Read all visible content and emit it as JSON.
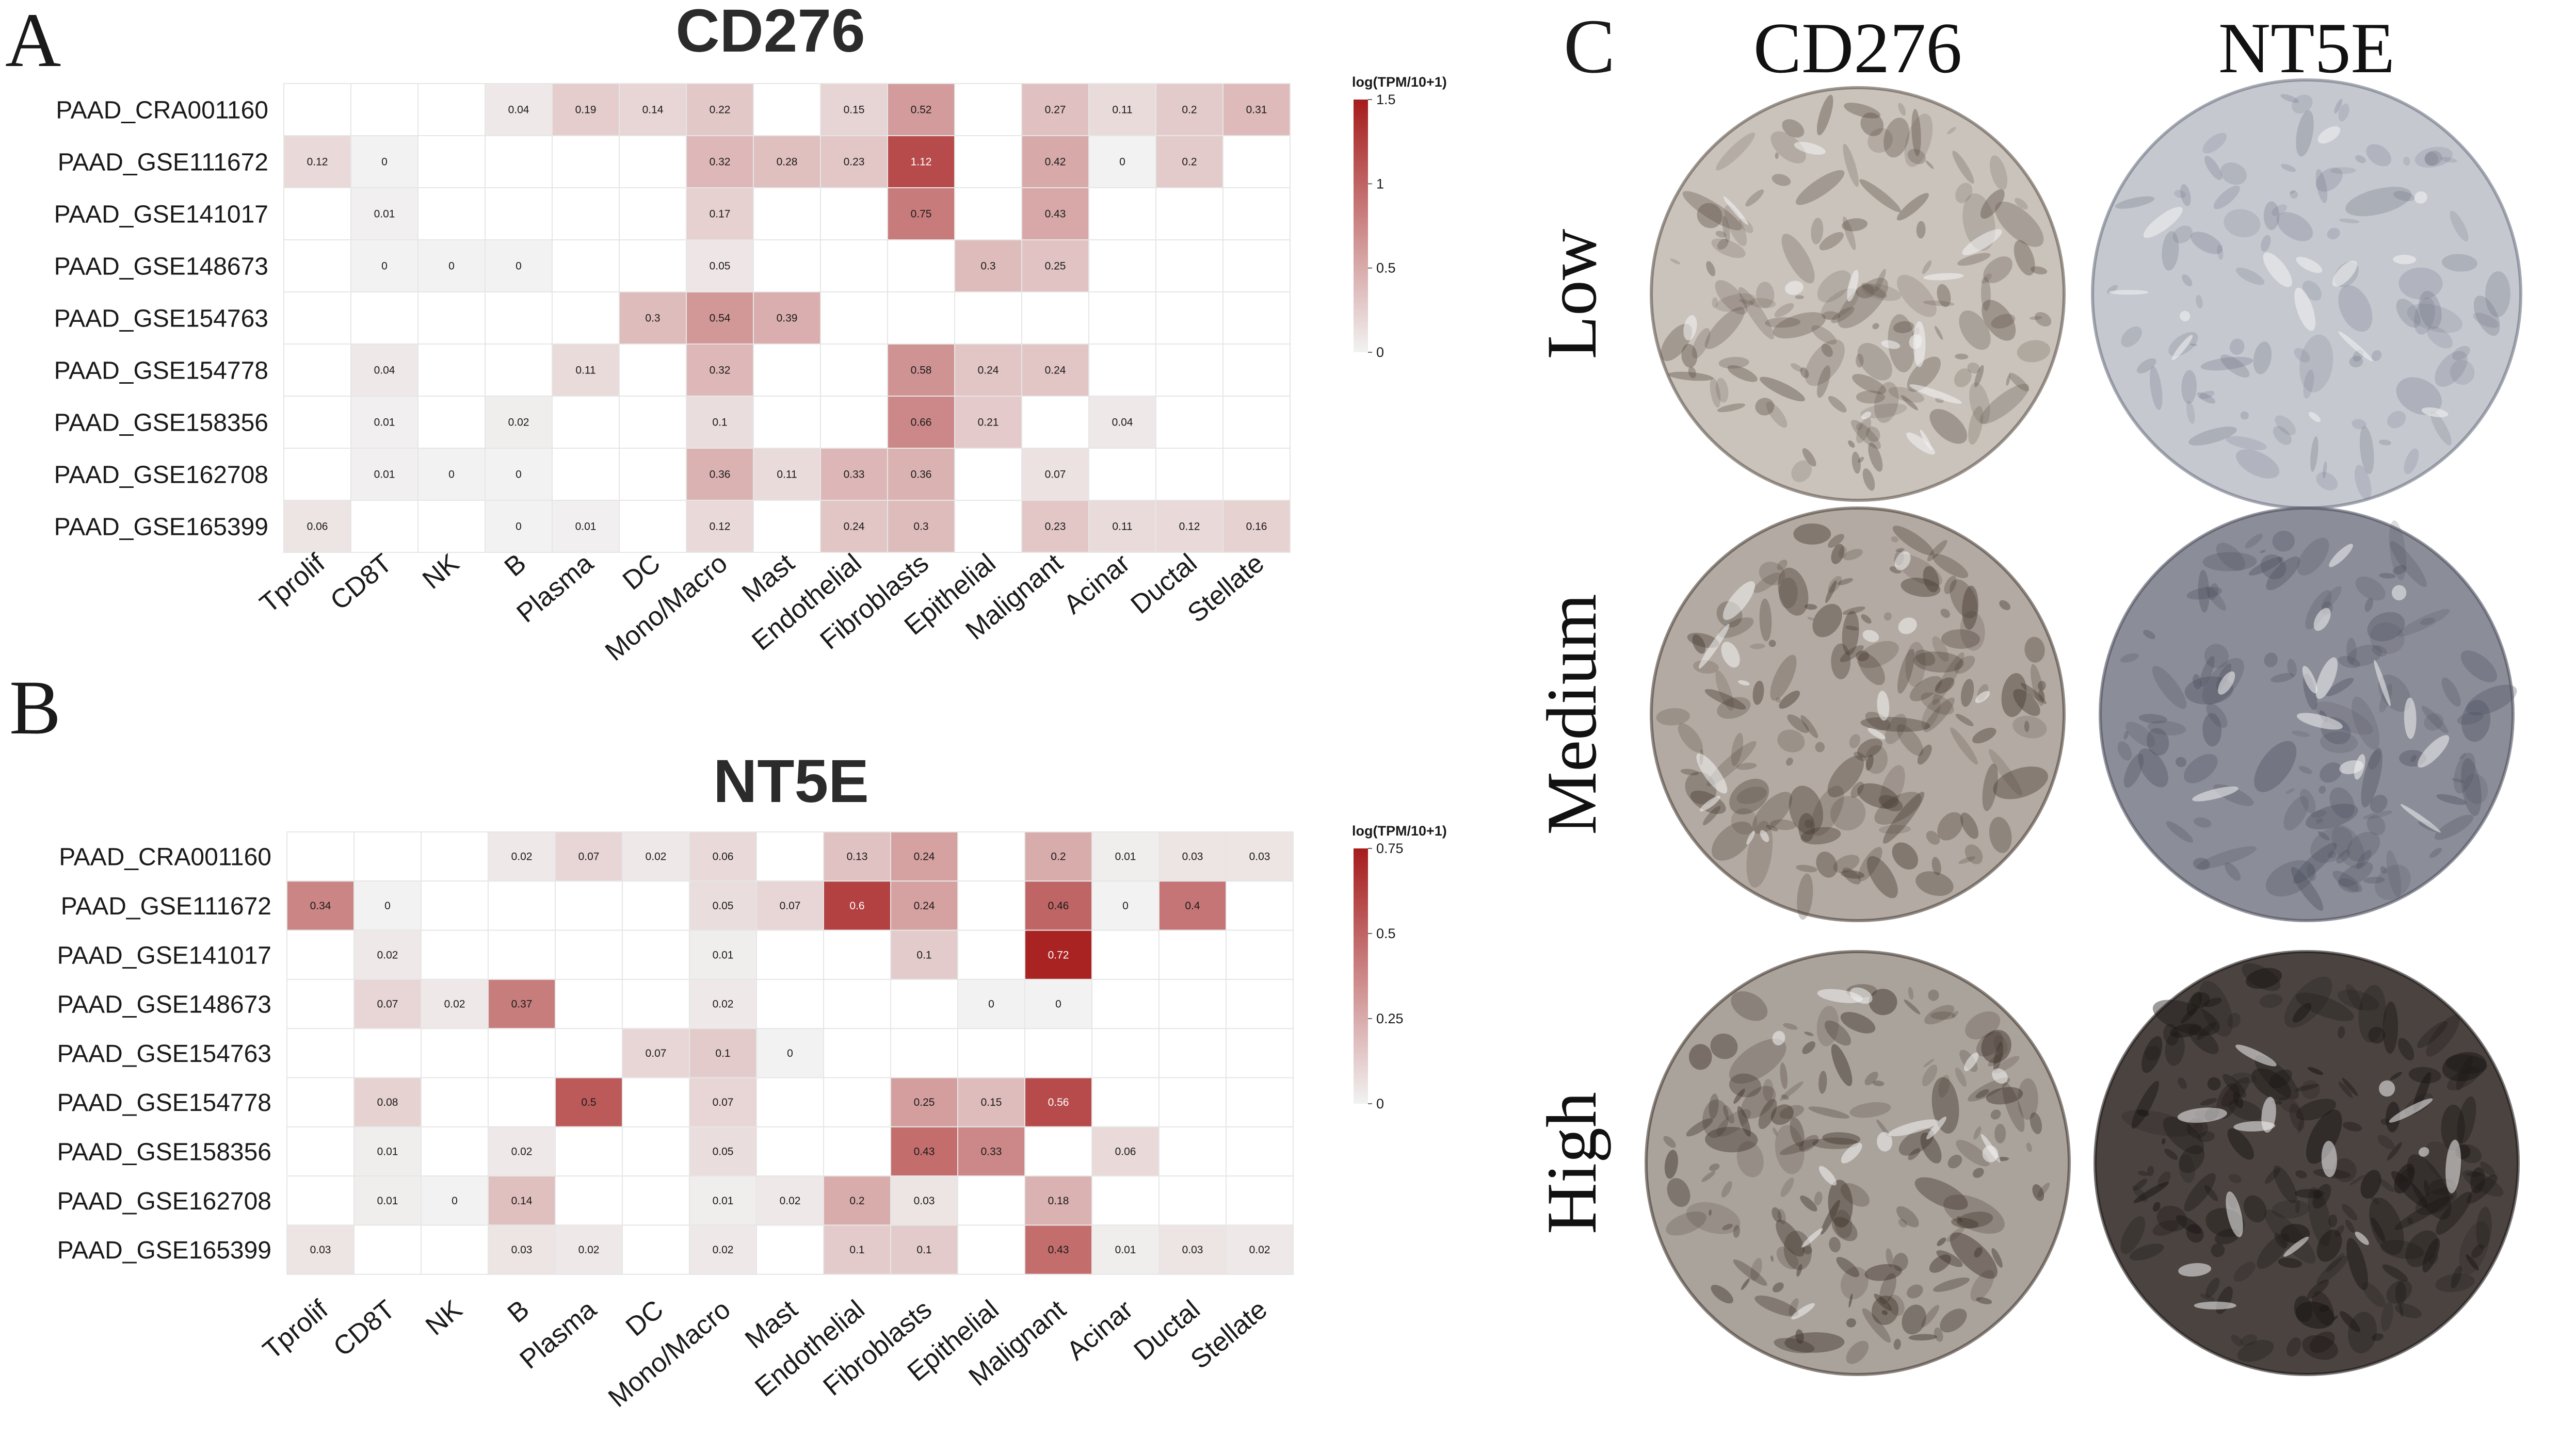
{
  "panels": {
    "a": "A",
    "b": "B",
    "c": "C"
  },
  "chart_data": [
    {
      "type": "heatmap",
      "title": "CD276",
      "legend_title": "log(TPM/10+1)",
      "legend_ticks": [
        "1.5",
        "1",
        "0.5",
        "0"
      ],
      "vmax": 1.5,
      "vmin": 0,
      "colors": {
        "low": "#f2f2f2",
        "high": "#a61c1c",
        "grid": "#e6e6e6",
        "text_dark": "#1a1a1a",
        "text_light": "#ffffff"
      },
      "rows": [
        "PAAD_CRA001160",
        "PAAD_GSE111672",
        "PAAD_GSE141017",
        "PAAD_GSE148673",
        "PAAD_GSE154763",
        "PAAD_GSE154778",
        "PAAD_GSE158356",
        "PAAD_GSE162708",
        "PAAD_GSE165399"
      ],
      "columns": [
        "Tprolif",
        "CD8T",
        "NK",
        "B",
        "Plasma",
        "DC",
        "Mono/Macro",
        "Mast",
        "Endothelial",
        "Fibroblasts",
        "Epithelial",
        "Malignant",
        "Acinar",
        "Ductal",
        "Stellate"
      ],
      "values": [
        [
          null,
          null,
          null,
          0.04,
          0.19,
          0.14,
          0.22,
          null,
          0.15,
          0.52,
          null,
          0.27,
          0.11,
          0.2,
          0.31
        ],
        [
          0.12,
          0,
          null,
          null,
          null,
          null,
          0.32,
          0.28,
          0.23,
          1.12,
          null,
          0.42,
          0,
          0.2,
          null
        ],
        [
          null,
          0.01,
          null,
          null,
          null,
          null,
          0.17,
          null,
          null,
          0.75,
          null,
          0.43,
          null,
          null,
          null
        ],
        [
          null,
          0,
          0,
          0,
          null,
          null,
          0.05,
          null,
          null,
          null,
          0.3,
          0.25,
          null,
          null,
          null
        ],
        [
          null,
          null,
          null,
          null,
          null,
          0.3,
          0.54,
          0.39,
          null,
          null,
          null,
          null,
          null,
          null,
          null
        ],
        [
          null,
          0.04,
          null,
          null,
          0.11,
          null,
          0.32,
          null,
          null,
          0.58,
          0.24,
          0.24,
          null,
          null,
          null
        ],
        [
          null,
          0.01,
          null,
          0.02,
          null,
          null,
          0.1,
          null,
          null,
          0.66,
          0.21,
          null,
          0.04,
          null,
          null
        ],
        [
          null,
          0.01,
          0,
          0,
          null,
          null,
          0.36,
          0.11,
          0.33,
          0.36,
          null,
          0.07,
          null,
          null,
          null
        ],
        [
          0.06,
          null,
          null,
          0,
          0.01,
          null,
          0.12,
          null,
          0.24,
          0.3,
          null,
          0.23,
          0.11,
          0.12,
          0.16
        ]
      ]
    },
    {
      "type": "heatmap",
      "title": "NT5E",
      "legend_title": "log(TPM/10+1)",
      "legend_ticks": [
        "0.75",
        "0.5",
        "0.25",
        "0"
      ],
      "vmax": 0.75,
      "vmin": 0,
      "colors": {
        "low": "#f2f2f2",
        "high": "#a61c1c",
        "grid": "#e6e6e6",
        "text_dark": "#1a1a1a",
        "text_light": "#ffffff"
      },
      "rows": [
        "PAAD_CRA001160",
        "PAAD_GSE111672",
        "PAAD_GSE141017",
        "PAAD_GSE148673",
        "PAAD_GSE154763",
        "PAAD_GSE154778",
        "PAAD_GSE158356",
        "PAAD_GSE162708",
        "PAAD_GSE165399"
      ],
      "columns": [
        "Tprolif",
        "CD8T",
        "NK",
        "B",
        "Plasma",
        "DC",
        "Mono/Macro",
        "Mast",
        "Endothelial",
        "Fibroblasts",
        "Epithelial",
        "Malignant",
        "Acinar",
        "Ductal",
        "Stellate"
      ],
      "values": [
        [
          null,
          null,
          null,
          0.02,
          0.07,
          0.02,
          0.06,
          null,
          0.13,
          0.24,
          null,
          0.2,
          0.01,
          0.03,
          0.03
        ],
        [
          0.34,
          0,
          null,
          null,
          null,
          null,
          0.05,
          0.07,
          0.6,
          0.24,
          null,
          0.46,
          0,
          0.4,
          null
        ],
        [
          null,
          0.02,
          null,
          null,
          null,
          null,
          0.01,
          null,
          null,
          0.1,
          null,
          0.72,
          null,
          null,
          null
        ],
        [
          null,
          0.07,
          0.02,
          0.37,
          null,
          null,
          0.02,
          null,
          null,
          null,
          0,
          0,
          null,
          null,
          null
        ],
        [
          null,
          null,
          null,
          null,
          null,
          0.07,
          0.1,
          0,
          null,
          null,
          null,
          null,
          null,
          null,
          null
        ],
        [
          null,
          0.08,
          null,
          null,
          0.5,
          null,
          0.07,
          null,
          null,
          0.25,
          0.15,
          0.56,
          null,
          null,
          null
        ],
        [
          null,
          0.01,
          null,
          0.02,
          null,
          null,
          0.05,
          null,
          null,
          0.43,
          0.33,
          null,
          0.06,
          null,
          null
        ],
        [
          null,
          0.01,
          0,
          0.14,
          null,
          null,
          0.01,
          0.02,
          0.2,
          0.03,
          null,
          0.18,
          null,
          null,
          null
        ],
        [
          0.03,
          null,
          null,
          0.03,
          0.02,
          null,
          0.02,
          null,
          0.1,
          0.1,
          null,
          0.43,
          0.01,
          0.03,
          0.02
        ]
      ]
    }
  ],
  "ihc": {
    "columns": [
      "CD276",
      "NT5E"
    ],
    "rows": [
      "Low",
      "Medium",
      "High"
    ],
    "samples": [
      [
        {
          "base": "#c9c3bc",
          "dark": "#5e5147",
          "density": 0.55
        },
        {
          "base": "#c6c8d0",
          "dark": "#6b7180",
          "density": 0.25
        }
      ],
      [
        {
          "base": "#b3aba3",
          "dark": "#4a3e35",
          "density": 0.65
        },
        {
          "base": "#8b8d98",
          "dark": "#4b4e5c",
          "density": 0.45
        }
      ],
      [
        {
          "base": "#aaa39c",
          "dark": "#3f342c",
          "density": 0.7
        },
        {
          "base": "#4a4340",
          "dark": "#1c1816",
          "density": 0.9
        }
      ]
    ]
  }
}
